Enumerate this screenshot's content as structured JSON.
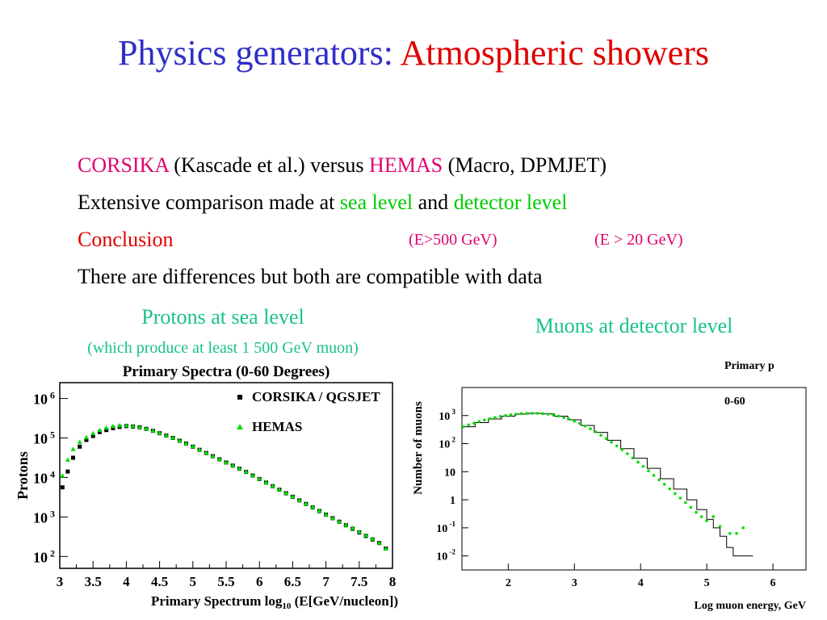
{
  "slide": {
    "title_part1": "Physics generators:",
    "title_part2": "Atmospheric showers",
    "colors": {
      "title_blue": "#2f2fc8",
      "title_red": "#e00000",
      "magenta": "#e0006f",
      "green": "#00cc00",
      "heading_teal": "#19c28a"
    },
    "bullets": {
      "line1": {
        "corsika": "CORSIKA",
        "t1": " (Kascade et al.) versus ",
        "hemas": "HEMAS",
        "t2": " (Macro, DPMJET)"
      },
      "line2": {
        "t1": "Extensive comparison made at ",
        "sea": "sea level",
        "t2": " and ",
        "detector": "detector level"
      },
      "line3": {
        "conclusion": "Conclusion",
        "e500": "(E>500 GeV)",
        "e20": "(E > 20 GeV)"
      },
      "line4": "There are differences but both are compatible with data"
    },
    "left_heading": "Protons at sea level",
    "left_subheading": "(which produce at least 1 500 GeV muon)",
    "right_heading": "Muons at detector level"
  },
  "chart_data": [
    {
      "type": "scatter",
      "title": "Primary Spectra (0-60 Degrees)",
      "xlabel_main": "Primary Spectrum log",
      "xlabel_sub": "10",
      "xlabel_end": " (E[GeV/nucleon])",
      "ylabel": "Protons",
      "xlim": [
        3,
        8
      ],
      "ylim_log10": [
        1.7,
        6.4
      ],
      "log_y": true,
      "x_ticks": [
        "3",
        "3.5",
        "4",
        "4.5",
        "5",
        "5.5",
        "6",
        "6.5",
        "7",
        "7.5",
        "8"
      ],
      "y_ticks": [
        {
          "base": "10",
          "exp": "2",
          "log": 2
        },
        {
          "base": "10",
          "exp": "3",
          "log": 3
        },
        {
          "base": "10",
          "exp": "4",
          "log": 4
        },
        {
          "base": "10",
          "exp": "5",
          "log": 5
        },
        {
          "base": "10",
          "exp": "6",
          "log": 6
        }
      ],
      "legend": {
        "position": "top-right",
        "entries": [
          "CORSIKA / QGSJET",
          "HEMAS"
        ]
      },
      "series": [
        {
          "name": "CORSIKA / QGSJET",
          "marker": "square",
          "color": "#000000",
          "x": [
            3.04,
            3.12,
            3.2,
            3.3,
            3.4,
            3.5,
            3.6,
            3.7,
            3.8,
            3.9,
            4.0,
            4.1,
            4.2,
            4.3,
            4.4,
            4.5,
            4.6,
            4.7,
            4.8,
            4.9,
            5.0,
            5.1,
            5.2,
            5.3,
            5.4,
            5.5,
            5.6,
            5.7,
            5.8,
            5.9,
            6.0,
            6.1,
            6.2,
            6.3,
            6.4,
            6.5,
            6.6,
            6.7,
            6.8,
            6.9,
            7.0,
            7.1,
            7.2,
            7.3,
            7.4,
            7.5,
            7.6,
            7.7,
            7.8,
            7.9
          ],
          "y_log10": [
            3.75,
            4.15,
            4.5,
            4.78,
            4.95,
            5.05,
            5.15,
            5.2,
            5.25,
            5.28,
            5.3,
            5.29,
            5.27,
            5.23,
            5.18,
            5.12,
            5.06,
            5.0,
            4.93,
            4.86,
            4.78,
            4.7,
            4.62,
            4.54,
            4.46,
            4.38,
            4.3,
            4.22,
            4.14,
            4.05,
            3.96,
            3.87,
            3.78,
            3.69,
            3.6,
            3.51,
            3.42,
            3.33,
            3.24,
            3.15,
            3.06,
            2.97,
            2.88,
            2.79,
            2.7,
            2.61,
            2.52,
            2.43,
            2.34,
            2.2
          ]
        },
        {
          "name": "HEMAS",
          "marker": "triangle",
          "color": "#00dd00",
          "x": [
            3.04,
            3.12,
            3.2,
            3.3,
            3.4,
            3.5,
            3.6,
            3.7,
            3.8,
            3.9,
            4.0,
            4.1,
            4.2,
            4.3,
            4.4,
            4.5,
            4.6,
            4.7,
            4.8,
            4.9,
            5.0,
            5.1,
            5.2,
            5.3,
            5.4,
            5.5,
            5.6,
            5.7,
            5.8,
            5.9,
            6.0,
            6.1,
            6.2,
            6.3,
            6.4,
            6.5,
            6.6,
            6.7,
            6.8,
            6.9,
            7.0,
            7.1,
            7.2,
            7.3,
            7.4,
            7.5,
            7.6,
            7.7,
            7.8,
            7.9
          ],
          "y_log10": [
            4.05,
            4.45,
            4.72,
            4.9,
            5.02,
            5.12,
            5.2,
            5.26,
            5.3,
            5.32,
            5.32,
            5.31,
            5.28,
            5.24,
            5.19,
            5.13,
            5.07,
            5.01,
            4.94,
            4.87,
            4.79,
            4.71,
            4.63,
            4.55,
            4.47,
            4.39,
            4.31,
            4.23,
            4.15,
            4.06,
            3.97,
            3.88,
            3.79,
            3.7,
            3.61,
            3.52,
            3.43,
            3.34,
            3.25,
            3.16,
            3.07,
            2.98,
            2.89,
            2.8,
            2.72,
            2.63,
            2.54,
            2.45,
            2.35,
            2.2
          ]
        }
      ]
    },
    {
      "type": "scatter",
      "title": "",
      "xlabel": "Log muon energy, GeV",
      "ylabel": "Number of muons",
      "annotations": [
        "Primary p",
        "0-60"
      ],
      "xlim": [
        1.3,
        6.5
      ],
      "ylim_log10": [
        -2.5,
        4.0
      ],
      "log_y": true,
      "x_ticks": [
        "2",
        "3",
        "4",
        "5",
        "6"
      ],
      "y_ticks": [
        {
          "base": "10",
          "exp": "-2",
          "log": -2
        },
        {
          "base": "10",
          "exp": "-1",
          "log": -1
        },
        {
          "base": "1",
          "exp": "",
          "log": 0
        },
        {
          "base": "10",
          "exp": "",
          "log": 1
        },
        {
          "base": "10",
          "exp": "2",
          "log": 2
        },
        {
          "base": "10",
          "exp": "3",
          "log": 3
        }
      ],
      "series": [
        {
          "name": "",
          "marker": "histogram",
          "color": "#000000",
          "steps": [
            [
              1.3,
              2.6
            ],
            [
              1.5,
              2.75
            ],
            [
              1.7,
              2.88
            ],
            [
              1.9,
              2.98
            ],
            [
              2.1,
              3.05
            ],
            [
              2.3,
              3.08
            ],
            [
              2.5,
              3.06
            ],
            [
              2.7,
              2.98
            ],
            [
              2.9,
              2.85
            ],
            [
              3.1,
              2.65
            ],
            [
              3.3,
              2.4
            ],
            [
              3.5,
              2.12
            ],
            [
              3.7,
              1.82
            ],
            [
              3.9,
              1.48
            ],
            [
              4.1,
              1.12
            ],
            [
              4.3,
              0.75
            ],
            [
              4.5,
              0.38
            ],
            [
              4.7,
              0.0
            ],
            [
              4.85,
              -0.35
            ],
            [
              5.0,
              -0.7
            ],
            [
              5.1,
              -1.0
            ],
            [
              5.2,
              -1.3
            ],
            [
              5.3,
              -1.7
            ],
            [
              5.4,
              -2.0
            ],
            [
              5.5,
              -2.0
            ],
            [
              5.7,
              -2.5
            ]
          ]
        },
        {
          "name": "",
          "marker": "dot",
          "color": "#00dd00",
          "x": [
            1.32,
            1.4,
            1.48,
            1.56,
            1.64,
            1.72,
            1.8,
            1.88,
            1.96,
            2.04,
            2.12,
            2.2,
            2.28,
            2.36,
            2.44,
            2.52,
            2.6,
            2.68,
            2.76,
            2.84,
            2.92,
            3.0,
            3.08,
            3.16,
            3.24,
            3.32,
            3.4,
            3.48,
            3.56,
            3.64,
            3.72,
            3.8,
            3.88,
            3.96,
            4.04,
            4.12,
            4.2,
            4.28,
            4.36,
            4.44,
            4.52,
            4.6,
            4.68,
            4.76,
            4.84,
            4.92,
            5.0,
            5.1,
            5.2,
            5.35,
            5.45,
            5.55
          ],
          "y_log10": [
            2.6,
            2.67,
            2.73,
            2.79,
            2.84,
            2.89,
            2.93,
            2.97,
            3.0,
            3.03,
            3.05,
            3.07,
            3.08,
            3.08,
            3.08,
            3.07,
            3.05,
            3.02,
            2.98,
            2.93,
            2.87,
            2.8,
            2.72,
            2.63,
            2.53,
            2.42,
            2.3,
            2.18,
            2.05,
            1.92,
            1.78,
            1.64,
            1.49,
            1.34,
            1.19,
            1.03,
            0.87,
            0.71,
            0.55,
            0.39,
            0.22,
            0.06,
            -0.1,
            -0.27,
            -0.45,
            -0.6,
            -0.75,
            -0.6,
            -0.95,
            -1.2,
            -1.2,
            -1.0
          ]
        }
      ]
    }
  ]
}
